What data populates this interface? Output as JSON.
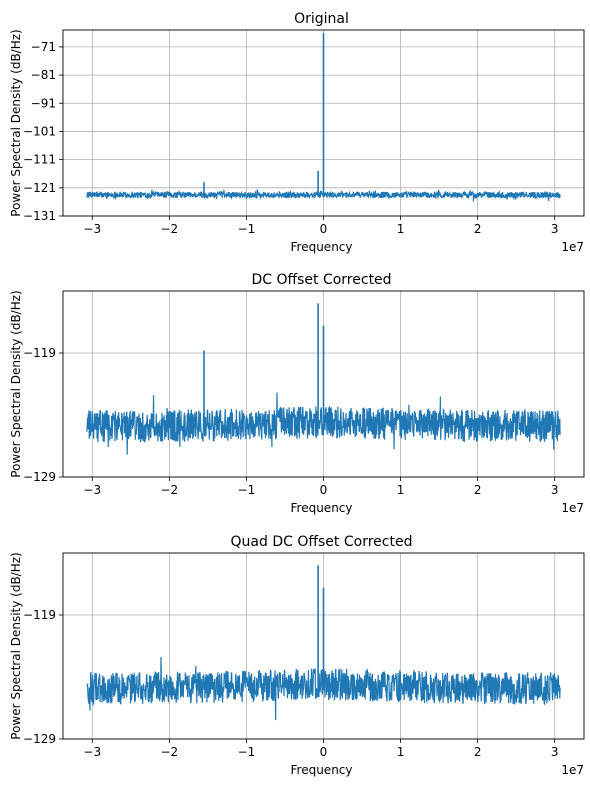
{
  "chart_data": [
    {
      "type": "line",
      "title": "Original",
      "xlabel": "Frequency",
      "ylabel": "Power Spectral Density (dB/Hz)",
      "x_offset_label": "1e7",
      "xlim": [
        -3.38,
        3.38
      ],
      "ylim": [
        -131,
        -65
      ],
      "x_ticks": [
        -3,
        -2,
        -1,
        0,
        1,
        2,
        3
      ],
      "y_ticks": [
        -131,
        -121,
        -111,
        -101,
        -91,
        -81,
        -71
      ],
      "grid": true,
      "series_color": "#1f77b4",
      "x_range": [
        -3.07,
        3.07
      ],
      "noise_floor": -123.5,
      "noise_spread": 1.1,
      "noise_slope": 0.0,
      "peaks": [
        {
          "x": 0.0,
          "y": -66
        },
        {
          "x": -0.07,
          "y": -115
        },
        {
          "x": -1.55,
          "y": -119
        }
      ]
    },
    {
      "type": "line",
      "title": "DC Offset Corrected",
      "xlabel": "Frequency",
      "ylabel": "Power Spectral Density (dB/Hz)",
      "x_offset_label": "1e7",
      "xlim": [
        -3.38,
        3.38
      ],
      "ylim": [
        -129,
        -114
      ],
      "x_ticks": [
        -3,
        -2,
        -1,
        0,
        1,
        2,
        3
      ],
      "y_ticks": [
        -129,
        -119
      ],
      "grid": true,
      "series_color": "#1f77b4",
      "x_range": [
        -3.07,
        3.07
      ],
      "noise_floor": -124.9,
      "noise_spread": 1.3,
      "noise_slope": 0.3,
      "peaks": [
        {
          "x": -0.07,
          "y": -115
        },
        {
          "x": 0.0,
          "y": -116.8
        },
        {
          "x": -1.55,
          "y": -118.8
        }
      ]
    },
    {
      "type": "line",
      "title": "Quad DC Offset Corrected",
      "xlabel": "Frequency",
      "ylabel": "Power Spectral Density (dB/Hz)",
      "x_offset_label": "1e7",
      "xlim": [
        -3.38,
        3.38
      ],
      "ylim": [
        -129,
        -114
      ],
      "x_ticks": [
        -3,
        -2,
        -1,
        0,
        1,
        2,
        3
      ],
      "y_ticks": [
        -129,
        -119
      ],
      "grid": true,
      "series_color": "#1f77b4",
      "x_range": [
        -3.07,
        3.07
      ],
      "noise_floor": -124.9,
      "noise_spread": 1.3,
      "noise_slope": 0.3,
      "peaks": [
        {
          "x": -0.07,
          "y": -115
        },
        {
          "x": 0.0,
          "y": -116.8
        }
      ]
    }
  ]
}
